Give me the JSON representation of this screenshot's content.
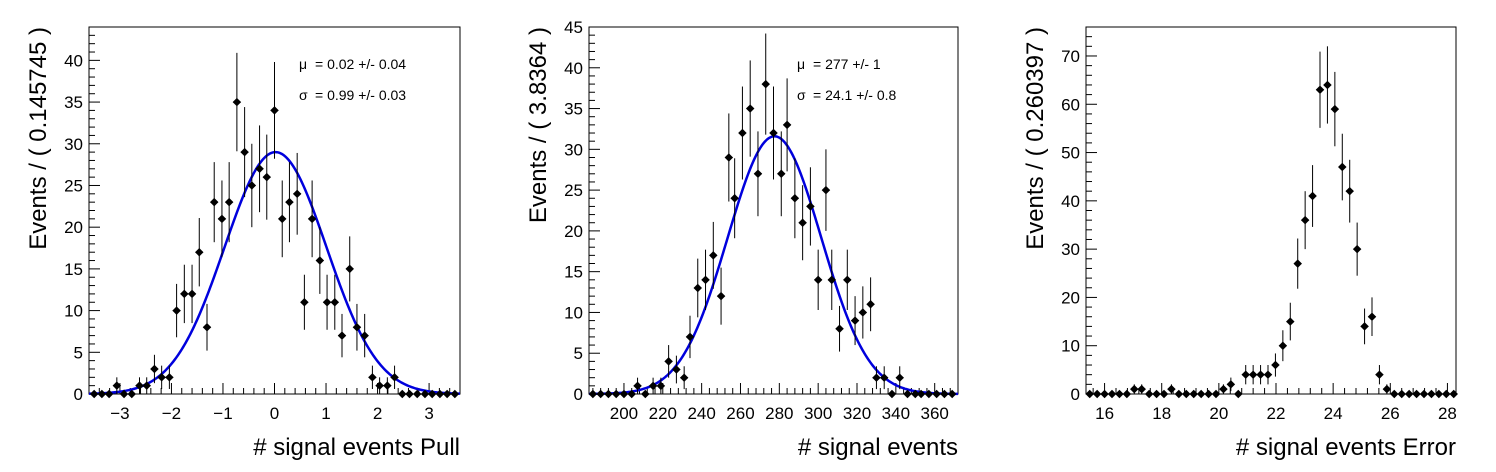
{
  "chart_data": [
    {
      "type": "scatter",
      "title": "",
      "xlabel": "# signal events Pull",
      "ylabel": "Events / ( 0.145745 )",
      "xlim": [
        -3.6,
        3.6
      ],
      "ylim": [
        0,
        44
      ],
      "xticks": [
        -3,
        -2,
        -1,
        0,
        1,
        2,
        3
      ],
      "xtick_labels": [
        "−3",
        "−2",
        "−1",
        "0",
        "1",
        "2",
        "3"
      ],
      "yticks": [
        0,
        5,
        10,
        15,
        20,
        25,
        30,
        35,
        40
      ],
      "ytick_labels": [
        "0",
        "5",
        "10",
        "15",
        "20",
        "25",
        "30",
        "35",
        "40"
      ],
      "bin_width": 0.145745,
      "series": [
        {
          "x": [
            -3.5,
            -3.35,
            -3.21,
            -3.06,
            -2.92,
            -2.77,
            -2.62,
            -2.48,
            -2.33,
            -2.19,
            -2.04,
            -1.9,
            -1.75,
            -1.6,
            -1.46,
            -1.31,
            -1.17,
            -1.02,
            -0.88,
            -0.73,
            -0.58,
            -0.44,
            -0.29,
            -0.15,
            0.0,
            0.15,
            0.29,
            0.44,
            0.58,
            0.73,
            0.88,
            1.02,
            1.17,
            1.31,
            1.46,
            1.6,
            1.75,
            1.9,
            2.04,
            2.19,
            2.33,
            2.48,
            2.62,
            2.77,
            2.92,
            3.06,
            3.21,
            3.35,
            3.5
          ],
          "y": [
            0,
            0,
            0,
            1,
            0,
            0,
            1,
            1,
            3,
            2,
            2,
            10,
            12,
            12,
            17,
            8,
            23,
            21,
            23,
            35,
            29,
            25,
            27,
            26,
            34,
            21,
            23,
            24,
            11,
            21,
            16,
            11,
            11,
            7,
            15,
            8,
            7,
            2,
            1,
            1,
            2,
            0,
            0,
            0,
            0,
            0,
            0,
            0,
            0
          ],
          "err": [
            0,
            0,
            0,
            1,
            0,
            0,
            1,
            1,
            1.7,
            1.4,
            1.4,
            3.2,
            3.5,
            3.5,
            4.1,
            2.8,
            4.8,
            4.6,
            4.8,
            5.9,
            5.4,
            5.0,
            5.2,
            5.1,
            5.8,
            4.6,
            4.8,
            4.9,
            3.3,
            4.6,
            4.0,
            3.3,
            3.3,
            2.6,
            3.9,
            2.8,
            2.6,
            1.4,
            1,
            1,
            1.4,
            0,
            0,
            0,
            0,
            0,
            0,
            0,
            0
          ]
        }
      ],
      "fit": {
        "type": "gaussian",
        "mean": 0.02,
        "sigma": 0.99,
        "peak": 29.0,
        "color": "#0000dd"
      },
      "annotations": [
        {
          "symbol": "μ",
          "text": "=  0.02 +/- 0.04"
        },
        {
          "symbol": "σ",
          "text": "=  0.99 +/- 0.03"
        }
      ]
    },
    {
      "type": "scatter",
      "title": "",
      "xlabel": "# signal events",
      "ylabel": "Events / ( 3.8364 )",
      "xlim": [
        182,
        372
      ],
      "ylim": [
        0,
        45
      ],
      "xticks": [
        200,
        220,
        240,
        260,
        280,
        300,
        320,
        340,
        360
      ],
      "xtick_labels": [
        "200",
        "220",
        "240",
        "260",
        "280",
        "300",
        "320",
        "340",
        "360"
      ],
      "yticks": [
        0,
        5,
        10,
        15,
        20,
        25,
        30,
        35,
        40,
        45
      ],
      "ytick_labels": [
        "0",
        "5",
        "10",
        "15",
        "20",
        "25",
        "30",
        "35",
        "40",
        "45"
      ],
      "bin_width": 3.8364,
      "series": [
        {
          "x": [
            184,
            188,
            192,
            196,
            200,
            204,
            207,
            211,
            215,
            219,
            223,
            227,
            231,
            234,
            238,
            242,
            246,
            250,
            254,
            257,
            261,
            265,
            269,
            273,
            277,
            281,
            284,
            288,
            292,
            296,
            300,
            304,
            307,
            311,
            315,
            319,
            323,
            327,
            330,
            334,
            338,
            342,
            346,
            350,
            353,
            357,
            361,
            365,
            369
          ],
          "y": [
            0,
            0,
            0,
            0,
            0,
            0,
            1,
            0,
            1,
            1,
            4,
            3,
            2,
            7,
            13,
            14,
            17,
            12,
            29,
            24,
            32,
            35,
            27,
            38,
            32,
            27,
            33,
            24,
            21,
            23,
            14,
            25,
            14,
            8,
            14,
            9,
            10,
            11,
            2,
            2,
            0,
            2,
            0,
            0,
            0,
            0,
            0,
            0,
            0
          ],
          "err": [
            0,
            0,
            0,
            0,
            0,
            0,
            1,
            0,
            1,
            1,
            2.0,
            1.7,
            1.4,
            2.6,
            3.6,
            3.7,
            4.1,
            3.5,
            5.4,
            4.9,
            5.7,
            5.9,
            5.2,
            6.2,
            5.7,
            5.2,
            5.7,
            4.9,
            4.6,
            4.8,
            3.7,
            5.0,
            3.7,
            2.8,
            3.7,
            3.0,
            3.2,
            3.3,
            1.4,
            1.4,
            0,
            1.4,
            0,
            0,
            0,
            0,
            0,
            0,
            0
          ]
        }
      ],
      "fit": {
        "type": "gaussian",
        "mean": 277.5,
        "sigma": 24.1,
        "peak": 31.6,
        "color": "#0000dd"
      },
      "annotations": [
        {
          "symbol": "μ",
          "text": "=  277 +/- 1"
        },
        {
          "symbol": "σ",
          "text": "=  24.1 +/- 0.8"
        }
      ]
    },
    {
      "type": "scatter",
      "title": "",
      "xlabel": "# signal events Error",
      "ylabel": "Events / ( 0.260397 )",
      "xlim": [
        15.35,
        28.3
      ],
      "ylim": [
        0,
        76
      ],
      "xticks": [
        16,
        18,
        20,
        22,
        24,
        26,
        28
      ],
      "xtick_labels": [
        "16",
        "18",
        "20",
        "22",
        "24",
        "26",
        "28"
      ],
      "yticks": [
        0,
        10,
        20,
        30,
        40,
        50,
        60,
        70
      ],
      "ytick_labels": [
        "0",
        "10",
        "20",
        "30",
        "40",
        "50",
        "60",
        "70"
      ],
      "bin_width": 0.260397,
      "series": [
        {
          "x": [
            15.48,
            15.74,
            16.0,
            16.26,
            16.52,
            16.78,
            17.04,
            17.3,
            17.56,
            17.82,
            18.08,
            18.34,
            18.6,
            18.86,
            19.12,
            19.38,
            19.64,
            19.9,
            20.16,
            20.42,
            20.68,
            20.94,
            21.2,
            21.46,
            21.72,
            21.98,
            22.24,
            22.5,
            22.76,
            23.02,
            23.28,
            23.54,
            23.8,
            24.06,
            24.32,
            24.58,
            24.84,
            25.1,
            25.36,
            25.62,
            25.88,
            26.14,
            26.4,
            26.66,
            26.92,
            27.18,
            27.44,
            27.7,
            27.96,
            28.22
          ],
          "y": [
            0,
            0,
            0,
            0,
            0,
            0,
            1,
            1,
            0,
            0,
            0,
            1,
            0,
            0,
            0,
            0,
            0,
            0,
            1,
            2,
            0,
            4,
            4,
            4,
            4,
            6,
            10,
            15,
            27,
            36,
            41,
            63,
            64,
            59,
            47,
            42,
            30,
            14,
            16,
            4,
            1,
            0,
            0,
            0,
            0,
            0,
            0,
            0,
            0,
            0
          ],
          "err": [
            0,
            0,
            0,
            0,
            0,
            0,
            1,
            1,
            0,
            0,
            0,
            1,
            0,
            0,
            0,
            0,
            0,
            0,
            1,
            1.4,
            0,
            2.0,
            2.0,
            2.0,
            2.0,
            2.4,
            3.2,
            3.9,
            5.2,
            6.0,
            6.4,
            7.9,
            8.0,
            7.7,
            6.9,
            6.5,
            5.5,
            3.7,
            4.0,
            2.0,
            1,
            0,
            0,
            0,
            0,
            0,
            0,
            0,
            0,
            0
          ]
        }
      ],
      "fit": null,
      "annotations": []
    }
  ]
}
